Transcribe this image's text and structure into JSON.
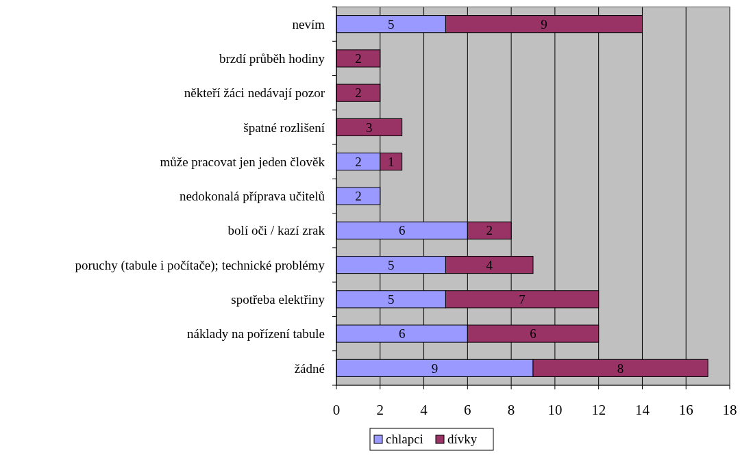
{
  "chart_data": {
    "type": "bar",
    "orientation": "horizontal",
    "stacked": true,
    "data_labels": true,
    "grid": "x",
    "legend": "bottom",
    "categories": [
      "nevím",
      "brzdí průběh hodiny",
      "někteří žáci nedávají pozor",
      "špatné rozlišení",
      "může pracovat jen jeden člověk",
      "nedokonalá příprava učitelů",
      "bolí oči / kazí zrak",
      "poruchy (tabule i počítače); technické problémy",
      "spotřeba elektřiny",
      "náklady na pořízení tabule",
      "žádné"
    ],
    "series": [
      {
        "name": "chlapci",
        "color": "#9999ff",
        "values": [
          5,
          null,
          null,
          null,
          2,
          2,
          6,
          5,
          5,
          6,
          9
        ]
      },
      {
        "name": "dívky",
        "color": "#993366",
        "values": [
          9,
          2,
          2,
          3,
          1,
          null,
          2,
          4,
          7,
          6,
          8
        ]
      }
    ],
    "xlim": [
      0,
      18
    ],
    "xticks": [
      0,
      2,
      4,
      6,
      8,
      10,
      12,
      14,
      16,
      18
    ]
  }
}
